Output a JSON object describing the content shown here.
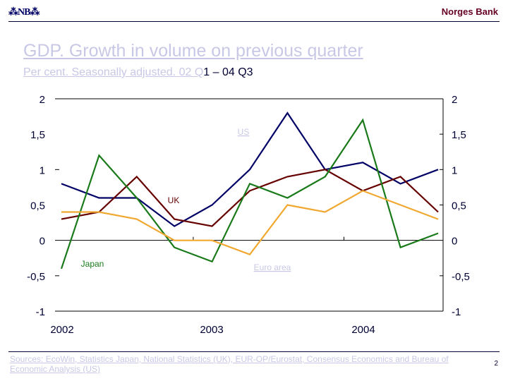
{
  "header": {
    "logo_text": "⁂NB⁂",
    "brand": "Norges Bank"
  },
  "title": "GDP. Growth in volume on previous quarter",
  "subtitle": {
    "part1": "Per cent. Seasonally adjusted. 02 Q",
    "part2": "1 – 04 Q3"
  },
  "footer": {
    "sources": "Sources: EcoWin, Statistics Japan, National Statistics (UK), EUR-OP/Eurostat, Consensus Economics and Bureau of Economic Analysis (US)",
    "page_number": "2"
  },
  "chart_data": {
    "type": "line",
    "title": "GDP. Growth in volume on previous quarter",
    "subtitle": "Per cent. Seasonally adjusted. 02 Q1 – 04 Q3",
    "x": [
      "2002Q1",
      "2002Q2",
      "2002Q3",
      "2002Q4",
      "2003Q1",
      "2003Q2",
      "2003Q3",
      "2003Q4",
      "2004Q1",
      "2004Q2",
      "2004Q3"
    ],
    "x_tick_labels": [
      "2002",
      "2003",
      "2004"
    ],
    "y_tick_labels_left": [
      "2",
      "1,5",
      "1",
      "0,5",
      "0",
      "-0,5",
      "-1"
    ],
    "y_tick_labels_right": [
      "2",
      "1,5",
      "1",
      "0,5",
      "0",
      "-0,5",
      "-1"
    ],
    "y_ticks": [
      2,
      1.5,
      1,
      0.5,
      0,
      -0.5,
      -1
    ],
    "ylim": [
      -1,
      2
    ],
    "xlabel": "",
    "ylabel": "",
    "grid": false,
    "series": [
      {
        "name": "US",
        "color": "#000066",
        "values": [
          0.8,
          0.6,
          0.6,
          0.2,
          0.5,
          1.0,
          1.8,
          1.0,
          1.1,
          0.8,
          1.0
        ]
      },
      {
        "name": "UK",
        "color": "#660000",
        "values": [
          0.3,
          0.4,
          0.9,
          0.3,
          0.2,
          0.7,
          0.9,
          1.0,
          0.7,
          0.9,
          0.4
        ]
      },
      {
        "name": "Japan",
        "color": "#1a7a1a",
        "values": [
          -0.4,
          1.2,
          0.6,
          -0.1,
          -0.3,
          0.8,
          0.6,
          0.9,
          1.7,
          -0.1,
          0.1
        ]
      },
      {
        "name": "Euro area",
        "color": "#f0a830",
        "values": [
          0.4,
          0.4,
          0.3,
          0.0,
          0.0,
          -0.2,
          0.5,
          0.4,
          0.7,
          0.5,
          0.3
        ]
      }
    ],
    "series_labels": [
      {
        "name": "US",
        "color": "#c8c8e6",
        "underline": true
      },
      {
        "name": "UK",
        "color": "#660000",
        "underline": false
      },
      {
        "name": "Japan",
        "color": "#1a7a1a",
        "underline": false
      },
      {
        "name": "Euro area",
        "color": "#c8c8e6",
        "underline": true
      }
    ],
    "legend": "inline labels"
  }
}
